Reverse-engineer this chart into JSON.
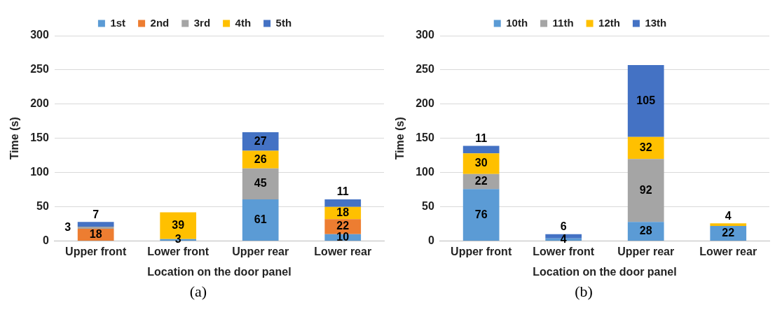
{
  "chart_data": [
    {
      "type": "bar",
      "stacked": true,
      "categories": [
        "Upper front",
        "Lower front",
        "Upper rear",
        "Lower rear"
      ],
      "xlabel": "Location on the door panel",
      "ylabel": "Time (s)",
      "ylim": [
        0,
        300
      ],
      "yticks": [
        0,
        50,
        100,
        150,
        200,
        250,
        300
      ],
      "grid": "y",
      "legend": "top",
      "annotations": [
        "(a)"
      ],
      "series": [
        {
          "name": "1st",
          "color": "#5b9bd5",
          "values": [
            0,
            3,
            61,
            10
          ],
          "value_labels": [
            null,
            "3",
            "61",
            "10"
          ]
        },
        {
          "name": "2nd",
          "color": "#ed7d31",
          "values": [
            18,
            0,
            0,
            22
          ],
          "value_labels": [
            "18",
            null,
            null,
            "22"
          ]
        },
        {
          "name": "3rd",
          "color": "#a5a5a5",
          "values": [
            3,
            0,
            45,
            0
          ],
          "value_labels": [
            "3",
            null,
            "45",
            null
          ]
        },
        {
          "name": "4th",
          "color": "#ffc000",
          "values": [
            0,
            39,
            26,
            18
          ],
          "value_labels": [
            null,
            "39",
            "26",
            "18"
          ]
        },
        {
          "name": "5th",
          "color": "#4472c4",
          "values": [
            7,
            0,
            27,
            11
          ],
          "value_labels": [
            "7",
            null,
            "27",
            "11"
          ]
        }
      ]
    },
    {
      "type": "bar",
      "stacked": true,
      "categories": [
        "Upper front",
        "Lower front",
        "Upper rear",
        "Lower rear"
      ],
      "xlabel": "Location on the door panel",
      "ylabel": "Time (s)",
      "ylim": [
        0,
        300
      ],
      "yticks": [
        0,
        50,
        100,
        150,
        200,
        250,
        300
      ],
      "grid": "y",
      "legend": "top",
      "annotations": [
        "(b)"
      ],
      "series": [
        {
          "name": "10th",
          "color": "#5b9bd5",
          "values": [
            76,
            4,
            28,
            22
          ],
          "value_labels": [
            "76",
            "4",
            "28",
            "22"
          ]
        },
        {
          "name": "11th",
          "color": "#a5a5a5",
          "values": [
            22,
            0,
            92,
            0
          ],
          "value_labels": [
            "22",
            null,
            "92",
            null
          ]
        },
        {
          "name": "12th",
          "color": "#ffc000",
          "values": [
            30,
            0,
            32,
            4
          ],
          "value_labels": [
            "30",
            null,
            "32",
            "4"
          ]
        },
        {
          "name": "13th",
          "color": "#4472c4",
          "values": [
            11,
            6,
            105,
            0
          ],
          "value_labels": [
            "11",
            "6",
            "105",
            null
          ]
        }
      ]
    }
  ]
}
